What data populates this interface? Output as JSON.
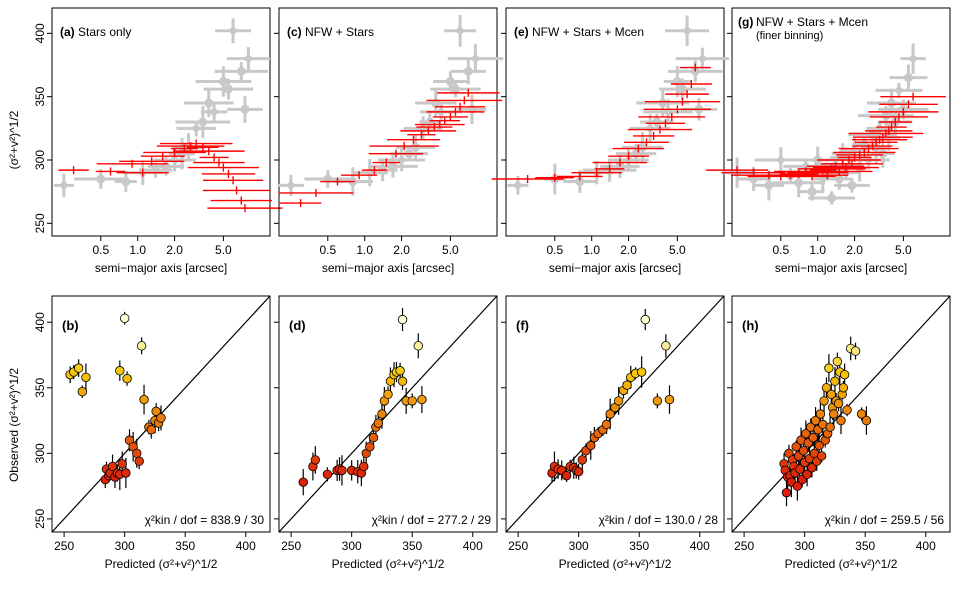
{
  "figure": {
    "top_xlabel": "semi−major axis [arcsec]",
    "top_ylabel": "(σ²+v²)^1/2",
    "bottom_xlabel": "Predicted (σ²+v²)^1/2",
    "bottom_ylabel": "Observed (σ²+v²)^1/2"
  },
  "colors": {
    "observed": "#c8c8c8",
    "model": "#ff0000",
    "point_stroke": "#000000"
  },
  "chart_data": [
    {
      "type": "scatter",
      "panel": "a",
      "title": "(a) Stars only",
      "xlabel": "semi−major axis [arcsec]",
      "ylabel": "(σ²+v²)^1/2",
      "xscale": "log",
      "xlim": [
        0.2,
        12
      ],
      "ylim": [
        240,
        420
      ],
      "xticks": [
        0.5,
        1.0,
        2.0,
        5.0
      ],
      "xtick_labels": [
        "0.5",
        "1.0",
        "2.0",
        "5.0"
      ],
      "yticks": [
        250,
        300,
        350,
        400
      ],
      "ytick_labels": [
        "250",
        "300",
        "350",
        "400"
      ],
      "series": [
        {
          "name": "observed",
          "x": [
            0.25,
            0.5,
            0.8,
            1.1,
            1.4,
            1.7,
            2.0,
            2.3,
            2.6,
            3.0,
            3.4,
            3.8,
            4.2,
            5.0,
            5.5,
            6.0,
            7.0,
            7.5,
            8.0
          ],
          "y": [
            280,
            285,
            283,
            290,
            292,
            295,
            300,
            305,
            310,
            325,
            330,
            345,
            338,
            362,
            356,
            402,
            370,
            340,
            380
          ]
        },
        {
          "name": "model",
          "x": [
            0.3,
            0.6,
            0.9,
            1.1,
            1.3,
            1.6,
            2.0,
            2.4,
            2.7,
            3.0,
            3.4,
            3.8,
            4.2,
            4.6,
            5.0,
            5.5,
            6.0,
            6.4,
            7.0,
            7.5
          ],
          "y": [
            292,
            291,
            297,
            290,
            299,
            303,
            306,
            309,
            311,
            313,
            310,
            307,
            302,
            298,
            294,
            289,
            284,
            276,
            268,
            262
          ]
        }
      ]
    },
    {
      "type": "scatter",
      "panel": "c",
      "title": "(c) NFW + Stars",
      "xlabel": "semi−major axis [arcsec]",
      "xscale": "log",
      "xlim": [
        0.2,
        12
      ],
      "ylim": [
        240,
        420
      ],
      "xticks": [
        0.5,
        1.0,
        2.0,
        5.0
      ],
      "xtick_labels": [
        "0.5",
        "1.0",
        "2.0",
        "5.0"
      ],
      "series": [
        {
          "name": "observed",
          "x": [
            0.25,
            0.5,
            0.8,
            1.1,
            1.4,
            1.7,
            2.0,
            2.3,
            2.6,
            3.0,
            3.4,
            3.8,
            4.2,
            5.0,
            5.5,
            6.0,
            7.0,
            7.5,
            8.0
          ],
          "y": [
            280,
            285,
            283,
            290,
            292,
            295,
            300,
            305,
            310,
            325,
            330,
            345,
            338,
            362,
            356,
            402,
            370,
            340,
            380
          ]
        },
        {
          "name": "model",
          "x": [
            0.3,
            0.4,
            0.6,
            0.9,
            1.2,
            1.5,
            1.8,
            2.1,
            2.5,
            2.9,
            3.3,
            3.7,
            4.1,
            4.5,
            5.0,
            5.5,
            6.0,
            6.5,
            7.0
          ],
          "y": [
            266,
            274,
            283,
            288,
            292,
            298,
            305,
            311,
            316,
            320,
            323,
            326,
            328,
            331,
            334,
            338,
            342,
            347,
            353
          ]
        }
      ]
    },
    {
      "type": "scatter",
      "panel": "e",
      "title": "(e) NFW + Stars + Mcen",
      "xlabel": "semi−major axis [arcsec]",
      "xscale": "log",
      "xlim": [
        0.2,
        12
      ],
      "ylim": [
        240,
        420
      ],
      "xticks": [
        0.5,
        1.0,
        2.0,
        5.0
      ],
      "xtick_labels": [
        "0.5",
        "1.0",
        "2.0",
        "5.0"
      ],
      "series": [
        {
          "name": "observed",
          "x": [
            0.25,
            0.5,
            0.8,
            1.1,
            1.4,
            1.7,
            2.0,
            2.3,
            2.6,
            3.0,
            3.4,
            3.8,
            4.2,
            5.0,
            5.5,
            6.0,
            7.0,
            7.5,
            8.0
          ],
          "y": [
            280,
            285,
            283,
            290,
            292,
            295,
            300,
            305,
            310,
            325,
            330,
            345,
            338,
            362,
            356,
            402,
            370,
            340,
            380
          ]
        },
        {
          "name": "model",
          "x": [
            0.3,
            0.5,
            0.8,
            1.1,
            1.4,
            1.7,
            2.0,
            2.4,
            2.8,
            3.2,
            3.6,
            4.0,
            4.5,
            5.0,
            5.5,
            6.0,
            6.5,
            7.0
          ],
          "y": [
            285,
            286,
            287,
            290,
            293,
            298,
            303,
            309,
            314,
            319,
            324,
            329,
            334,
            340,
            346,
            352,
            360,
            373
          ]
        }
      ]
    },
    {
      "type": "scatter",
      "panel": "g",
      "title": "(g) NFW + Stars + Mcen (finer binning)",
      "xlabel": "semi−major axis [arcsec]",
      "xscale": "log",
      "xlim": [
        0.2,
        12
      ],
      "ylim": [
        240,
        420
      ],
      "xticks": [
        0.5,
        1.0,
        2.0,
        5.0
      ],
      "xtick_labels": [
        "0.5",
        "1.0",
        "2.0",
        "5.0"
      ],
      "series": [
        {
          "name": "observed",
          "x": [
            0.22,
            0.3,
            0.4,
            0.5,
            0.6,
            0.7,
            0.8,
            0.9,
            1.0,
            1.1,
            1.2,
            1.3,
            1.4,
            1.5,
            1.6,
            1.7,
            1.8,
            1.9,
            2.0,
            2.2,
            2.4,
            2.6,
            2.8,
            3.0,
            3.2,
            3.4,
            3.6,
            3.8,
            4.0,
            4.3,
            4.6,
            5.0,
            5.5,
            6.0
          ],
          "y": [
            290,
            285,
            280,
            300,
            288,
            282,
            295,
            275,
            300,
            285,
            290,
            270,
            296,
            285,
            305,
            290,
            302,
            280,
            308,
            294,
            312,
            300,
            320,
            310,
            325,
            305,
            335,
            318,
            345,
            330,
            355,
            340,
            365,
            380
          ]
        },
        {
          "name": "model",
          "x": [
            0.22,
            0.3,
            0.4,
            0.5,
            0.6,
            0.7,
            0.8,
            0.9,
            1.0,
            1.1,
            1.2,
            1.3,
            1.4,
            1.5,
            1.6,
            1.7,
            1.8,
            1.9,
            2.0,
            2.2,
            2.4,
            2.6,
            2.8,
            3.0,
            3.2,
            3.4,
            3.6,
            3.8,
            4.0,
            4.3,
            4.6,
            5.0,
            5.5,
            6.0
          ],
          "y": [
            292,
            290,
            288,
            287,
            288,
            289,
            291,
            287,
            290,
            292,
            288,
            293,
            295,
            291,
            297,
            294,
            300,
            297,
            302,
            304,
            306,
            309,
            311,
            314,
            316,
            318,
            321,
            323,
            326,
            330,
            334,
            338,
            344,
            350
          ]
        }
      ]
    },
    {
      "type": "scatter",
      "panel": "b",
      "label": "(b)",
      "xlabel": "Predicted (σ²+v²)^1/2",
      "ylabel": "Observed (σ²+v²)^1/2",
      "xlim": [
        240,
        420
      ],
      "ylim": [
        240,
        420
      ],
      "xticks": [
        250,
        300,
        350,
        400
      ],
      "xtick_labels": [
        "250",
        "300",
        "350",
        "400"
      ],
      "yticks": [
        250,
        300,
        350,
        400
      ],
      "ytick_labels": [
        "250",
        "300",
        "350",
        "400"
      ],
      "annotation": "χ²kin / dof = 838.9 / 30",
      "points": {
        "predicted": [
          255,
          258,
          262,
          265,
          268,
          300,
          302,
          296,
          314,
          316,
          320,
          322,
          325,
          326,
          328,
          330,
          284,
          285,
          287,
          288,
          290,
          292,
          294,
          296,
          298,
          301,
          304,
          307,
          310,
          312
        ],
        "observed": [
          360,
          362,
          365,
          347,
          358,
          403,
          357,
          363,
          382,
          341,
          320,
          318,
          325,
          332,
          323,
          327,
          280,
          288,
          283,
          285,
          290,
          282,
          285,
          284,
          292,
          285,
          310,
          305,
          300,
          294
        ]
      }
    },
    {
      "type": "scatter",
      "panel": "d",
      "label": "(d)",
      "xlabel": "Predicted (σ²+v²)^1/2",
      "xlim": [
        240,
        420
      ],
      "ylim": [
        240,
        420
      ],
      "xticks": [
        250,
        300,
        350,
        400
      ],
      "xtick_labels": [
        "250",
        "300",
        "350",
        "400"
      ],
      "annotation": "χ²kin / dof = 277.2 / 29",
      "points": {
        "predicted": [
          260,
          268,
          270,
          280,
          288,
          290,
          292,
          300,
          305,
          308,
          310,
          312,
          315,
          318,
          320,
          322,
          325,
          327,
          330,
          332,
          335,
          337,
          340,
          342,
          345,
          350,
          355,
          358,
          342
        ],
        "observed": [
          278,
          290,
          295,
          284,
          287,
          288,
          287,
          287,
          286,
          285,
          290,
          300,
          305,
          312,
          320,
          323,
          330,
          340,
          345,
          355,
          360,
          362,
          363,
          355,
          340,
          340,
          382,
          341,
          402
        ]
      }
    },
    {
      "type": "scatter",
      "panel": "f",
      "label": "(f)",
      "xlabel": "Predicted (σ²+v²)^1/2",
      "xlim": [
        240,
        420
      ],
      "ylim": [
        240,
        420
      ],
      "xticks": [
        250,
        300,
        350,
        400
      ],
      "xtick_labels": [
        "250",
        "300",
        "350",
        "400"
      ],
      "annotation": "χ²kin / dof = 130.0 / 28",
      "points": {
        "predicted": [
          278,
          280,
          283,
          286,
          290,
          293,
          296,
          298,
          300,
          303,
          306,
          310,
          313,
          316,
          320,
          323,
          326,
          330,
          333,
          337,
          340,
          343,
          347,
          352,
          355,
          365,
          372,
          375
        ],
        "observed": [
          285,
          290,
          288,
          287,
          283,
          290,
          289,
          287,
          286,
          295,
          302,
          306,
          312,
          315,
          318,
          322,
          330,
          335,
          340,
          348,
          352,
          358,
          361,
          362,
          402,
          340,
          382,
          341
        ]
      }
    },
    {
      "type": "scatter",
      "panel": "h",
      "label": "(h)",
      "xlabel": "Predicted (σ²+v²)^1/2",
      "xlim": [
        240,
        420
      ],
      "ylim": [
        240,
        420
      ],
      "xticks": [
        250,
        300,
        350,
        400
      ],
      "xtick_labels": [
        "250",
        "300",
        "350",
        "400"
      ],
      "annotation": "χ²kin / dof = 259.5 / 56",
      "points": {
        "predicted": [
          283,
          284,
          285,
          286,
          287,
          288,
          289,
          290,
          291,
          292,
          293,
          294,
          295,
          296,
          297,
          298,
          299,
          300,
          301,
          302,
          303,
          304,
          305,
          306,
          307,
          308,
          309,
          310,
          311,
          312,
          313,
          314,
          315,
          316,
          317,
          318,
          319,
          320,
          321,
          322,
          323,
          324,
          325,
          326,
          327,
          328,
          329,
          330,
          331,
          332,
          333,
          335,
          338,
          342,
          347,
          351
        ],
        "observed": [
          292,
          287,
          270,
          282,
          300,
          283,
          278,
          295,
          290,
          285,
          305,
          275,
          298,
          288,
          310,
          280,
          302,
          293,
          315,
          284,
          308,
          296,
          320,
          289,
          312,
          300,
          325,
          294,
          318,
          306,
          330,
          298,
          322,
          340,
          310,
          350,
          315,
          365,
          320,
          345,
          335,
          330,
          355,
          340,
          370,
          338,
          362,
          325,
          345,
          350,
          360,
          333,
          380,
          378,
          330,
          325
        ]
      }
    }
  ]
}
